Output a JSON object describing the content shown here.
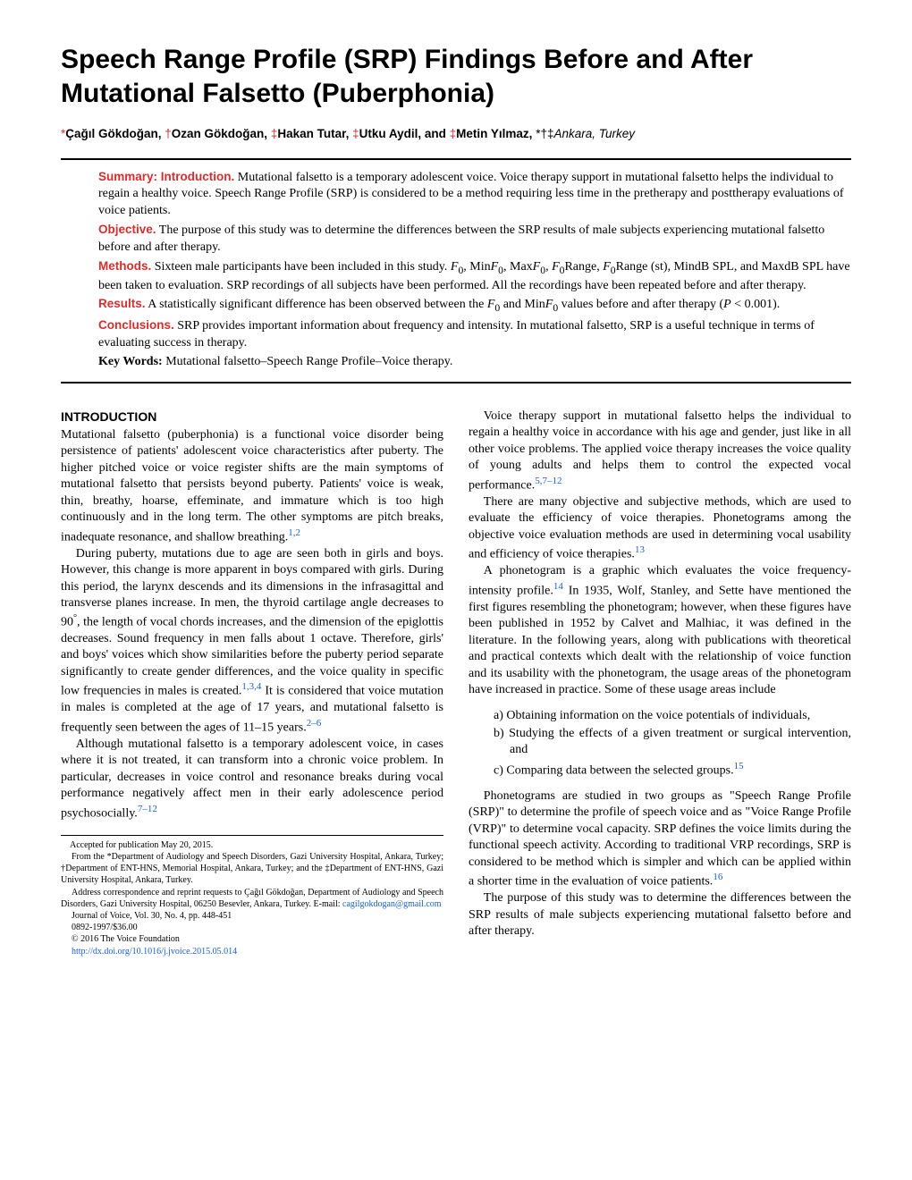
{
  "title": "Speech Range Profile (SRP) Findings Before and After Mutational Falsetto (Puberphonia)",
  "authors": {
    "a1_mark": "*",
    "a1_name": "Çağıl Gökdoğan, ",
    "a2_mark": "†",
    "a2_name": "Ozan Gökdoğan, ",
    "a3_mark": "‡",
    "a3_name": "Hakan Tutar, ",
    "a4_mark": "‡",
    "a4_name": "Utku Aydil, and ",
    "a5_mark": "‡",
    "a5_name": "Metin Yılmaz, ",
    "affil_marks": "*†‡",
    "affil": "Ankara, Turkey"
  },
  "abstract": {
    "intro_head": "Summary: Introduction.",
    "intro_text": " Mutational falsetto is a temporary adolescent voice. Voice therapy support in mutational falsetto helps the individual to regain a healthy voice. Speech Range Profile (SRP) is considered to be a method requiring less time in the pretherapy and posttherapy evaluations of voice patients.",
    "obj_head": "Objective.",
    "obj_text": " The purpose of this study was to determine the differences between the SRP results of male subjects experiencing mutational falsetto before and after therapy.",
    "meth_head": "Methods.",
    "meth_text_a": " Sixteen male participants have been included in this study. ",
    "meth_f0": "F",
    "meth_sub0": "0",
    "meth_text_b": ", Min",
    "meth_text_c": ", Max",
    "meth_text_d": ", ",
    "meth_text_e": "Range, ",
    "meth_text_f": "Range (st), MindB SPL, and MaxdB SPL have been taken to evaluation. SRP recordings of all subjects have been performed. All the recordings have been repeated before and after therapy.",
    "res_head": "Results.",
    "res_text_a": " A statistically significant difference has been observed between the ",
    "res_text_b": " and Min",
    "res_text_c": " values before and after therapy (",
    "res_p": "P",
    "res_text_d": " < 0.001).",
    "conc_head": "Conclusions.",
    "conc_text": " SRP provides important information about frequency and intensity. In mutational falsetto, SRP is a useful technique in terms of evaluating success in therapy.",
    "kw_head": "Key Words:",
    "kw_text": " Mutational falsetto–Speech Range Profile–Voice therapy."
  },
  "intro_head": "INTRODUCTION",
  "left": {
    "p1a": "Mutational falsetto (puberphonia) is a functional voice disorder being persistence of patients' adolescent voice characteristics after puberty. The higher pitched voice or voice register shifts are the main symptoms of mutational falsetto that persists beyond puberty. Patients' voice is weak, thin, breathy, hoarse, effeminate, and immature which is too high continuously and in the long term. The other symptoms are pitch breaks, inadequate resonance, and shallow breathing.",
    "p1ref": "1,2",
    "p2a": "During puberty, mutations due to age are seen both in girls and boys. However, this change is more apparent in boys compared with girls. During this period, the larynx descends and its dimensions in the infrasagittal and transverse planes increase. In men, the thyroid cartilage angle decreases to 90",
    "p2deg": "°",
    "p2b": ", the length of vocal chords increases, and the dimension of the epiglottis decreases. Sound frequency in men falls about 1 octave. Therefore, girls' and boys' voices which show similarities before the puberty period separate significantly to create gender differences, and the voice quality in specific low frequencies in males is created.",
    "p2ref": "1,3,4",
    "p2c": " It is considered that voice mutation in males is completed at the age of 17 years, and mutational falsetto is frequently seen between the ages of 11–15 years.",
    "p2ref2": "2–6",
    "p3a": "Although mutational falsetto is a temporary adolescent voice, in cases where it is not treated, it can transform into a chronic voice problem. In particular, decreases in voice control and resonance breaks during vocal performance negatively affect men in their early adolescence period psychosocially.",
    "p3ref": "7–12"
  },
  "right": {
    "p1a": "Voice therapy support in mutational falsetto helps the individual to regain a healthy voice in accordance with his age and gender, just like in all other voice problems. The applied voice therapy increases the voice quality of young adults and helps them to control the expected vocal performance.",
    "p1ref": "5,7–12",
    "p2a": "There are many objective and subjective methods, which are used to evaluate the efficiency of voice therapies. Phonetograms among the objective voice evaluation methods are used in determining vocal usability and efficiency of voice therapies.",
    "p2ref": "13",
    "p3a": "A phonetogram is a graphic which evaluates the voice frequency-intensity profile.",
    "p3ref": "14",
    "p3b": " In 1935, Wolf, Stanley, and Sette have mentioned the first figures resembling the phonetogram; however, when these figures have been published in 1952 by Calvet and Malhiac, it was defined in the literature. In the following years, along with publications with theoretical and practical contexts which dealt with the relationship of voice function and its usability with the phonetogram, the usage areas of the phonetogram have increased in practice. Some of these usage areas include",
    "la": "a) Obtaining information on the voice potentials of individuals,",
    "lb": "b) Studying the effects of a given treatment or surgical intervention, and",
    "lc_a": "c) Comparing data between the selected groups.",
    "lc_ref": "15",
    "p4": "Phonetograms are studied in two groups as \"Speech Range Profile (SRP)\" to determine the profile of speech voice and as \"Voice Range Profile (VRP)\" to determine vocal capacity. SRP defines the voice limits during the functional speech activity. According to traditional VRP recordings, SRP is considered to be method which is simpler and which can be applied within a shorter time in the evaluation of voice patients.",
    "p4ref": "16",
    "p5": "The purpose of this study was to determine the differences between the SRP results of male subjects experiencing mutational falsetto before and after therapy."
  },
  "footnotes": {
    "f1": "Accepted for publication May 20, 2015.",
    "f2": "From the *Department of Audiology and Speech Disorders, Gazi University Hospital, Ankara, Turkey; †Department of ENT-HNS, Memorial Hospital, Ankara, Turkey; and the ‡Department of ENT-HNS, Gazi University Hospital, Ankara, Turkey.",
    "f3a": "Address correspondence and reprint requests to Çağıl Gökdoğan, Department of Audiology and Speech Disorders, Gazi University Hospital, 06250 Besevler, Ankara, Turkey. E-mail: ",
    "f3b": "cagilgokdogan@gmail.com",
    "f4": "Journal of Voice, Vol. 30, No. 4, pp. 448-451",
    "f5": "0892-1997/$36.00",
    "f6": "© 2016 The Voice Foundation",
    "f7": "http://dx.doi.org/10.1016/j.jvoice.2015.05.014"
  }
}
